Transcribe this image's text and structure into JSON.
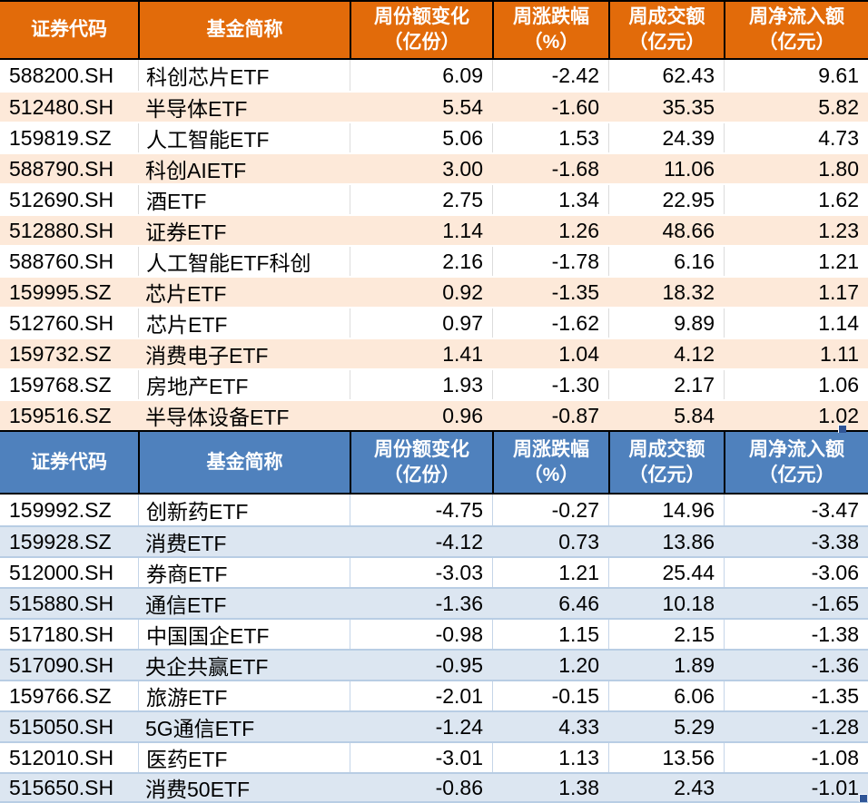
{
  "colors": {
    "orange_header": "#E26B0A",
    "orange_row": "#FDE9D9",
    "blue_header": "#4F81BD",
    "blue_row": "#DCE6F1",
    "header_text": "#FFFFFF",
    "data_text": "#000000",
    "selection_handle": "#2F5597"
  },
  "chart_data": [
    {
      "type": "table",
      "theme": "orange",
      "header_color": "#E26B0A",
      "alt_row_color": "#FDE9D9",
      "columns": [
        {
          "label": "证券代码",
          "unit": ""
        },
        {
          "label": "基金简称",
          "unit": ""
        },
        {
          "label": "周份额变化",
          "unit": "（亿份）"
        },
        {
          "label": "周涨跌幅",
          "unit": "（%）"
        },
        {
          "label": "周成交额",
          "unit": "（亿元）"
        },
        {
          "label": "周净流入额",
          "unit": "（亿元）"
        }
      ],
      "rows": [
        [
          "588200.SH",
          "科创芯片ETF",
          "6.09",
          "-2.42",
          "62.43",
          "9.61"
        ],
        [
          "512480.SH",
          "半导体ETF",
          "5.54",
          "-1.60",
          "35.35",
          "5.82"
        ],
        [
          "159819.SZ",
          "人工智能ETF",
          "5.06",
          "1.53",
          "24.39",
          "4.73"
        ],
        [
          "588790.SH",
          "科创AIETF",
          "3.00",
          "-1.68",
          "11.06",
          "1.80"
        ],
        [
          "512690.SH",
          "酒ETF",
          "2.75",
          "1.34",
          "22.95",
          "1.62"
        ],
        [
          "512880.SH",
          "证券ETF",
          "1.14",
          "1.26",
          "48.66",
          "1.23"
        ],
        [
          "588760.SH",
          "人工智能ETF科创",
          "2.16",
          "-1.78",
          "6.16",
          "1.21"
        ],
        [
          "159995.SZ",
          "芯片ETF",
          "0.92",
          "-1.35",
          "18.32",
          "1.17"
        ],
        [
          "512760.SH",
          "芯片ETF",
          "0.97",
          "-1.62",
          "9.89",
          "1.14"
        ],
        [
          "159732.SZ",
          "消费电子ETF",
          "1.41",
          "1.04",
          "4.12",
          "1.11"
        ],
        [
          "159768.SZ",
          "房地产ETF",
          "1.93",
          "-1.30",
          "2.17",
          "1.06"
        ],
        [
          "159516.SZ",
          "半导体设备ETF",
          "0.96",
          "-0.87",
          "5.84",
          "1.02"
        ]
      ]
    },
    {
      "type": "table",
      "theme": "blue",
      "header_color": "#4F81BD",
      "alt_row_color": "#DCE6F1",
      "columns": [
        {
          "label": "证券代码",
          "unit": ""
        },
        {
          "label": "基金简称",
          "unit": ""
        },
        {
          "label": "周份额变化",
          "unit": "（亿份）"
        },
        {
          "label": "周涨跌幅",
          "unit": "（%）"
        },
        {
          "label": "周成交额",
          "unit": "（亿元）"
        },
        {
          "label": "周净流入额",
          "unit": "（亿元）"
        }
      ],
      "rows": [
        [
          "159992.SZ",
          "创新药ETF",
          "-4.75",
          "-0.27",
          "14.96",
          "-3.47"
        ],
        [
          "159928.SZ",
          "消费ETF",
          "-4.12",
          "0.73",
          "13.86",
          "-3.38"
        ],
        [
          "512000.SH",
          "券商ETF",
          "-3.03",
          "1.21",
          "25.44",
          "-3.06"
        ],
        [
          "515880.SH",
          "通信ETF",
          "-1.36",
          "6.46",
          "10.18",
          "-1.65"
        ],
        [
          "517180.SH",
          "中国国企ETF",
          "-0.98",
          "1.15",
          "2.15",
          "-1.38"
        ],
        [
          "517090.SH",
          "央企共赢ETF",
          "-0.95",
          "1.20",
          "1.89",
          "-1.36"
        ],
        [
          "159766.SZ",
          "旅游ETF",
          "-2.01",
          "-0.15",
          "6.06",
          "-1.35"
        ],
        [
          "515050.SH",
          "5G通信ETF",
          "-1.24",
          "4.33",
          "5.29",
          "-1.28"
        ],
        [
          "512010.SH",
          "医药ETF",
          "-3.01",
          "1.13",
          "13.56",
          "-1.08"
        ],
        [
          "515650.SH",
          "消费50ETF",
          "-0.86",
          "1.38",
          "2.43",
          "-1.01"
        ]
      ]
    }
  ]
}
